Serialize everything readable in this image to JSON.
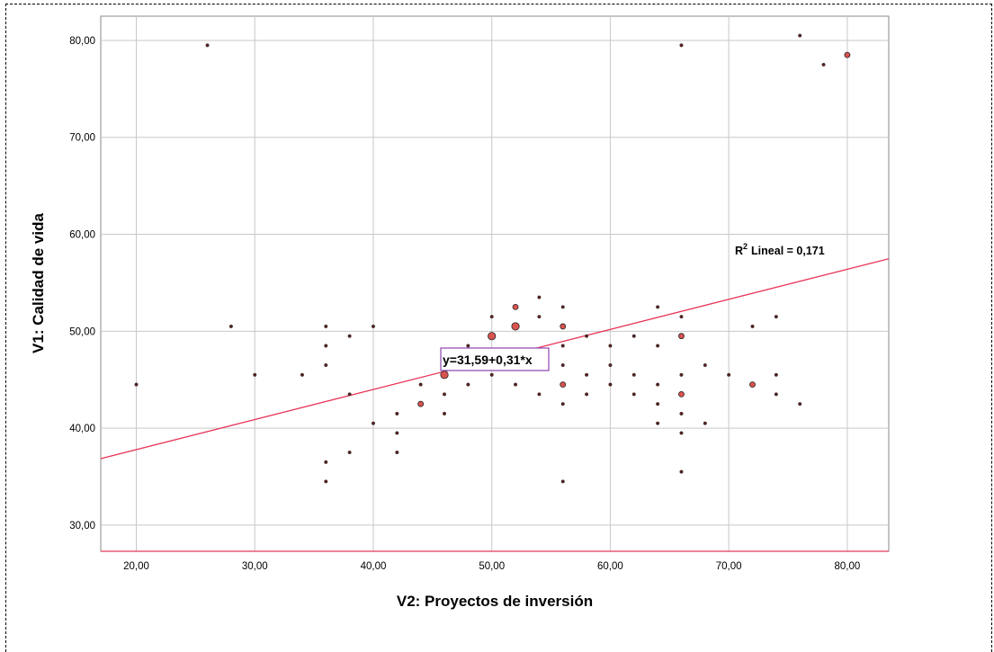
{
  "chart_data": {
    "type": "scatter",
    "title": "",
    "xlabel": "V2: Proyectos de inversión",
    "ylabel": "V1: Calidad de vida",
    "xlim": [
      17.0,
      83.5
    ],
    "ylim": [
      27.3,
      82.5
    ],
    "x_ticks": [
      "20,00",
      "30,00",
      "40,00",
      "50,00",
      "60,00",
      "70,00",
      "80,00"
    ],
    "y_ticks": [
      "30,00",
      "40,00",
      "50,00",
      "60,00",
      "70,00",
      "80,00"
    ],
    "x_tick_values": [
      20,
      30,
      40,
      50,
      60,
      70,
      80
    ],
    "y_tick_values": [
      30,
      40,
      50,
      60,
      70,
      80
    ],
    "grid": true,
    "fit_line": {
      "intercept": 31.59,
      "slope": 0.31,
      "color": "#e8365a"
    },
    "fit_equation": "y=31,59+0,31*x",
    "r2_label": "Lineal = 0,171",
    "r2_prefix": "R",
    "r2_sup": "2",
    "point_color": "#d9534f",
    "points": [
      {
        "x": 20,
        "y": 44.5,
        "n": 1
      },
      {
        "x": 26,
        "y": 79.5,
        "n": 1
      },
      {
        "x": 28,
        "y": 50.5,
        "n": 1
      },
      {
        "x": 30,
        "y": 45.5,
        "n": 1
      },
      {
        "x": 34,
        "y": 45.5,
        "n": 1
      },
      {
        "x": 36,
        "y": 50.5,
        "n": 1
      },
      {
        "x": 36,
        "y": 48.5,
        "n": 1
      },
      {
        "x": 36,
        "y": 46.5,
        "n": 1
      },
      {
        "x": 36,
        "y": 36.5,
        "n": 1
      },
      {
        "x": 36,
        "y": 34.5,
        "n": 1
      },
      {
        "x": 38,
        "y": 49.5,
        "n": 1
      },
      {
        "x": 38,
        "y": 43.5,
        "n": 1
      },
      {
        "x": 38,
        "y": 37.5,
        "n": 1
      },
      {
        "x": 40,
        "y": 50.5,
        "n": 1
      },
      {
        "x": 40,
        "y": 40.5,
        "n": 1
      },
      {
        "x": 42,
        "y": 41.5,
        "n": 1
      },
      {
        "x": 42,
        "y": 39.5,
        "n": 1
      },
      {
        "x": 42,
        "y": 37.5,
        "n": 1
      },
      {
        "x": 44,
        "y": 44.5,
        "n": 1
      },
      {
        "x": 44,
        "y": 42.5,
        "n": 2
      },
      {
        "x": 46,
        "y": 45.5,
        "n": 3
      },
      {
        "x": 46,
        "y": 43.5,
        "n": 1
      },
      {
        "x": 46,
        "y": 41.5,
        "n": 1
      },
      {
        "x": 46,
        "y": 46.5,
        "n": 1
      },
      {
        "x": 48,
        "y": 48.5,
        "n": 1
      },
      {
        "x": 48,
        "y": 44.5,
        "n": 1
      },
      {
        "x": 48,
        "y": 46.5,
        "n": 1
      },
      {
        "x": 50,
        "y": 51.5,
        "n": 1
      },
      {
        "x": 50,
        "y": 49.5,
        "n": 3
      },
      {
        "x": 50,
        "y": 45.5,
        "n": 1
      },
      {
        "x": 52,
        "y": 52.5,
        "n": 2
      },
      {
        "x": 52,
        "y": 50.5,
        "n": 3
      },
      {
        "x": 52,
        "y": 44.5,
        "n": 1
      },
      {
        "x": 54,
        "y": 53.5,
        "n": 1
      },
      {
        "x": 54,
        "y": 51.5,
        "n": 1
      },
      {
        "x": 54,
        "y": 43.5,
        "n": 1
      },
      {
        "x": 56,
        "y": 52.5,
        "n": 1
      },
      {
        "x": 56,
        "y": 50.5,
        "n": 2
      },
      {
        "x": 56,
        "y": 48.5,
        "n": 1
      },
      {
        "x": 56,
        "y": 46.5,
        "n": 1
      },
      {
        "x": 56,
        "y": 44.5,
        "n": 2
      },
      {
        "x": 56,
        "y": 42.5,
        "n": 1
      },
      {
        "x": 56,
        "y": 34.5,
        "n": 1
      },
      {
        "x": 58,
        "y": 49.5,
        "n": 1
      },
      {
        "x": 58,
        "y": 45.5,
        "n": 1
      },
      {
        "x": 58,
        "y": 43.5,
        "n": 1
      },
      {
        "x": 60,
        "y": 48.5,
        "n": 1
      },
      {
        "x": 60,
        "y": 46.5,
        "n": 1
      },
      {
        "x": 60,
        "y": 44.5,
        "n": 1
      },
      {
        "x": 62,
        "y": 49.5,
        "n": 1
      },
      {
        "x": 62,
        "y": 45.5,
        "n": 1
      },
      {
        "x": 62,
        "y": 43.5,
        "n": 1
      },
      {
        "x": 64,
        "y": 52.5,
        "n": 1
      },
      {
        "x": 64,
        "y": 48.5,
        "n": 1
      },
      {
        "x": 64,
        "y": 44.5,
        "n": 1
      },
      {
        "x": 64,
        "y": 42.5,
        "n": 1
      },
      {
        "x": 64,
        "y": 40.5,
        "n": 1
      },
      {
        "x": 66,
        "y": 79.5,
        "n": 1
      },
      {
        "x": 66,
        "y": 51.5,
        "n": 1
      },
      {
        "x": 66,
        "y": 49.5,
        "n": 2
      },
      {
        "x": 66,
        "y": 45.5,
        "n": 1
      },
      {
        "x": 66,
        "y": 43.5,
        "n": 2
      },
      {
        "x": 66,
        "y": 41.5,
        "n": 1
      },
      {
        "x": 66,
        "y": 39.5,
        "n": 1
      },
      {
        "x": 66,
        "y": 35.5,
        "n": 1
      },
      {
        "x": 68,
        "y": 46.5,
        "n": 1
      },
      {
        "x": 68,
        "y": 40.5,
        "n": 1
      },
      {
        "x": 70,
        "y": 45.5,
        "n": 1
      },
      {
        "x": 72,
        "y": 50.5,
        "n": 1
      },
      {
        "x": 72,
        "y": 44.5,
        "n": 2
      },
      {
        "x": 74,
        "y": 51.5,
        "n": 1
      },
      {
        "x": 74,
        "y": 45.5,
        "n": 1
      },
      {
        "x": 74,
        "y": 43.5,
        "n": 1
      },
      {
        "x": 76,
        "y": 80.5,
        "n": 1
      },
      {
        "x": 76,
        "y": 42.5,
        "n": 1
      },
      {
        "x": 78,
        "y": 77.5,
        "n": 1
      },
      {
        "x": 80,
        "y": 78.5,
        "n": 2
      }
    ]
  }
}
